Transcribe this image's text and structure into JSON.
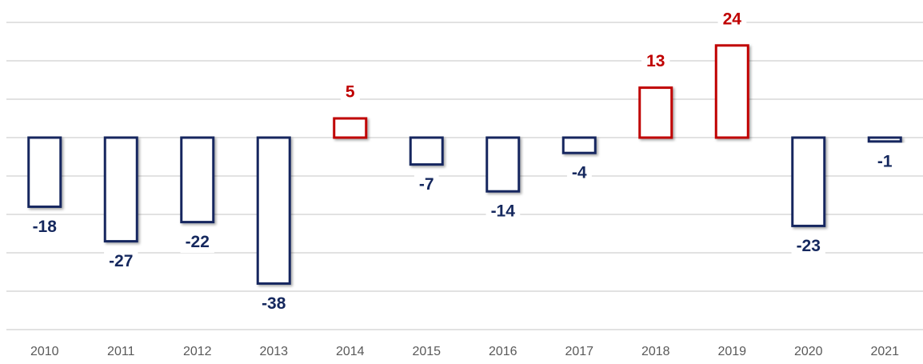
{
  "chart_data": {
    "type": "bar",
    "categories": [
      "2010",
      "2011",
      "2012",
      "2013",
      "2014",
      "2015",
      "2016",
      "2017",
      "2018",
      "2019",
      "2020",
      "2021"
    ],
    "values": [
      -18,
      -27,
      -22,
      -38,
      5,
      -7,
      -14,
      -4,
      13,
      24,
      -23,
      -1
    ],
    "colors": [
      "#15285e",
      "#15285e",
      "#15285e",
      "#15285e",
      "#c00000",
      "#15285e",
      "#15285e",
      "#15285e",
      "#c00000",
      "#c00000",
      "#15285e",
      "#15285e"
    ],
    "ylim": [
      -50,
      30
    ],
    "yticks": [
      -50,
      -40,
      -30,
      -20,
      -10,
      0,
      10,
      20,
      30
    ],
    "grid": true
  }
}
